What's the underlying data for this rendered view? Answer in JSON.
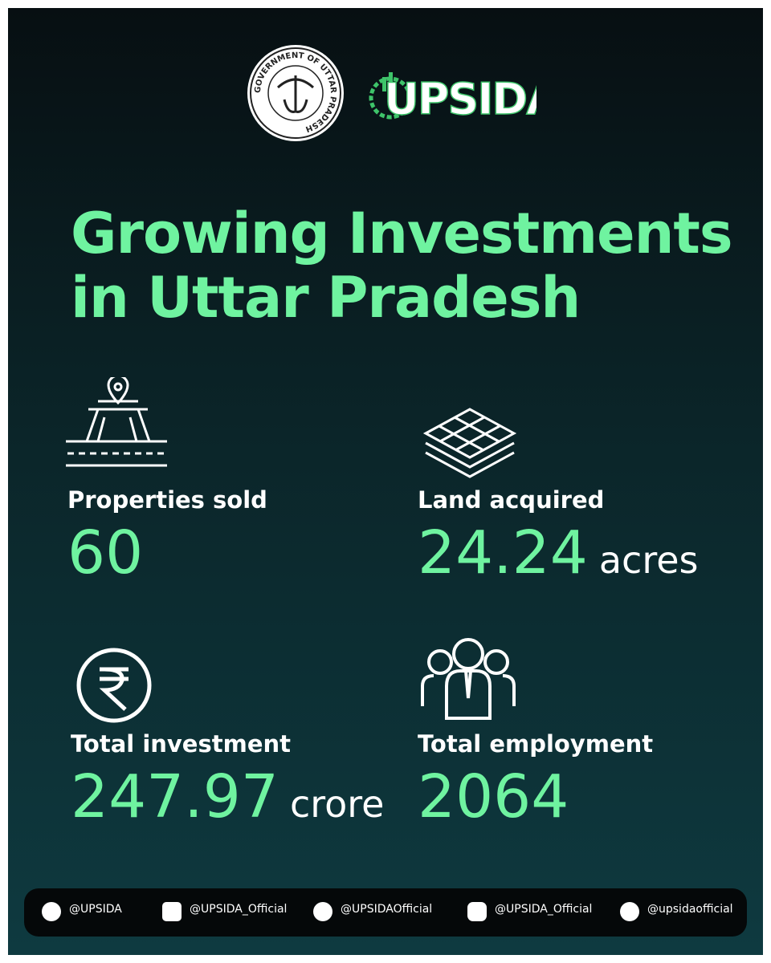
{
  "header": {
    "emblem_text": "GOVERNMENT OF UTTAR PRADESH",
    "logo": "UPSIDA"
  },
  "title": {
    "lines": [
      "Growing Investments",
      "in Uttar Pradesh"
    ]
  },
  "stats": [
    {
      "label": "Properties sold",
      "value": "60"
    },
    {
      "label": "Land acquired",
      "value": "24.24",
      "unit": "acres"
    },
    {
      "label": "Total investment",
      "value": "247.97",
      "unit": "crore"
    },
    {
      "label": "Total employment",
      "value": "2064"
    }
  ],
  "footer": {
    "handles": [
      "@UPSIDA",
      "@UPSIDA_Official",
      "@UPSIDAOfficial",
      "@UPSIDA_Official",
      "@upsidaofficial"
    ]
  }
}
